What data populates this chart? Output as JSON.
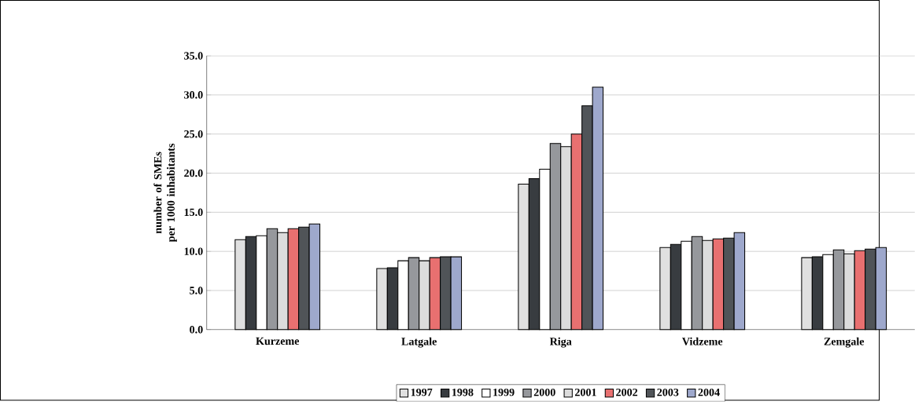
{
  "chart_data": {
    "type": "bar",
    "ylabel": "number of SMEs per 1000 inhabitants",
    "categories": [
      "Kurzeme",
      "Latgale",
      "Riga",
      "Vidzeme",
      "Zemgale"
    ],
    "series": [
      {
        "name": "1997",
        "color": "#e0e0e0",
        "values": [
          11.5,
          7.8,
          18.6,
          10.5,
          9.2
        ]
      },
      {
        "name": "1998",
        "color": "#383c40",
        "values": [
          11.9,
          7.9,
          19.3,
          10.9,
          9.3
        ]
      },
      {
        "name": "1999",
        "color": "#ffffff",
        "values": [
          12.0,
          8.8,
          20.5,
          11.3,
          9.6
        ]
      },
      {
        "name": "2000",
        "color": "#96989c",
        "values": [
          12.9,
          9.2,
          23.8,
          11.9,
          10.2
        ]
      },
      {
        "name": "2001",
        "color": "#dcdcdc",
        "values": [
          12.4,
          8.8,
          23.4,
          11.4,
          9.7
        ]
      },
      {
        "name": "2002",
        "color": "#e87070",
        "values": [
          12.9,
          9.2,
          25.0,
          11.6,
          10.1
        ]
      },
      {
        "name": "2003",
        "color": "#505458",
        "values": [
          13.1,
          9.3,
          28.6,
          11.7,
          10.3
        ]
      },
      {
        "name": "2004",
        "color": "#9ea8cc",
        "values": [
          13.5,
          9.3,
          31.0,
          12.4,
          10.5
        ]
      }
    ],
    "ylim": [
      0,
      35
    ],
    "yticks": [
      {
        "value": 0,
        "label": "0.0"
      },
      {
        "value": 5,
        "label": "5.0"
      },
      {
        "value": 10,
        "label": "10.0"
      },
      {
        "value": 15,
        "label": "15.0"
      },
      {
        "value": 20,
        "label": "20.0"
      },
      {
        "value": 25,
        "label": "25.0"
      },
      {
        "value": 30,
        "label": "30.0"
      },
      {
        "value": 35,
        "label": "35.0"
      }
    ],
    "grid": "y",
    "legend": "bottom"
  }
}
